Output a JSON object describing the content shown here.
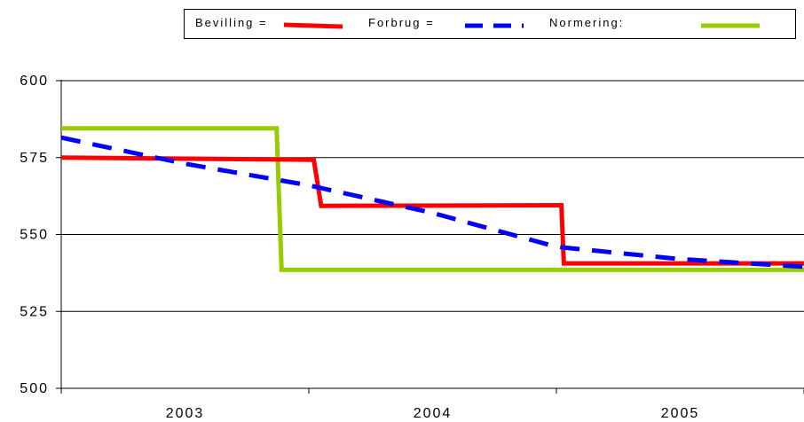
{
  "chart_data": {
    "type": "line",
    "x_categories": [
      "2003",
      "2004",
      "2005"
    ],
    "y_ticks": [
      "600",
      "575",
      "550",
      "525",
      "500"
    ],
    "ylim": [
      500,
      600
    ],
    "grid": "horizontal",
    "legend_position": "top",
    "series": [
      {
        "name": "Bevilling =",
        "color": "#ff0000",
        "style": "solid",
        "points": [
          [
            0.0,
            575
          ],
          [
            1.02,
            574.3
          ],
          [
            1.05,
            559.3
          ],
          [
            2.02,
            559.5
          ],
          [
            2.03,
            540.6
          ],
          [
            3.0,
            540.6
          ]
        ]
      },
      {
        "name": "Forbrug =",
        "color": "#0000ff",
        "style": "dashed",
        "points": [
          [
            0.0,
            581.5
          ],
          [
            0.5,
            573
          ],
          [
            1.0,
            566
          ],
          [
            1.5,
            557
          ],
          [
            2.0,
            546
          ],
          [
            2.5,
            542
          ],
          [
            3.0,
            539.5
          ]
        ]
      },
      {
        "name": "Normering:",
        "color": "#99cc00",
        "style": "solid",
        "points": [
          [
            0.0,
            584.5
          ],
          [
            0.87,
            584.5
          ],
          [
            0.89,
            538.5
          ],
          [
            3.0,
            538.5
          ]
        ]
      }
    ]
  }
}
